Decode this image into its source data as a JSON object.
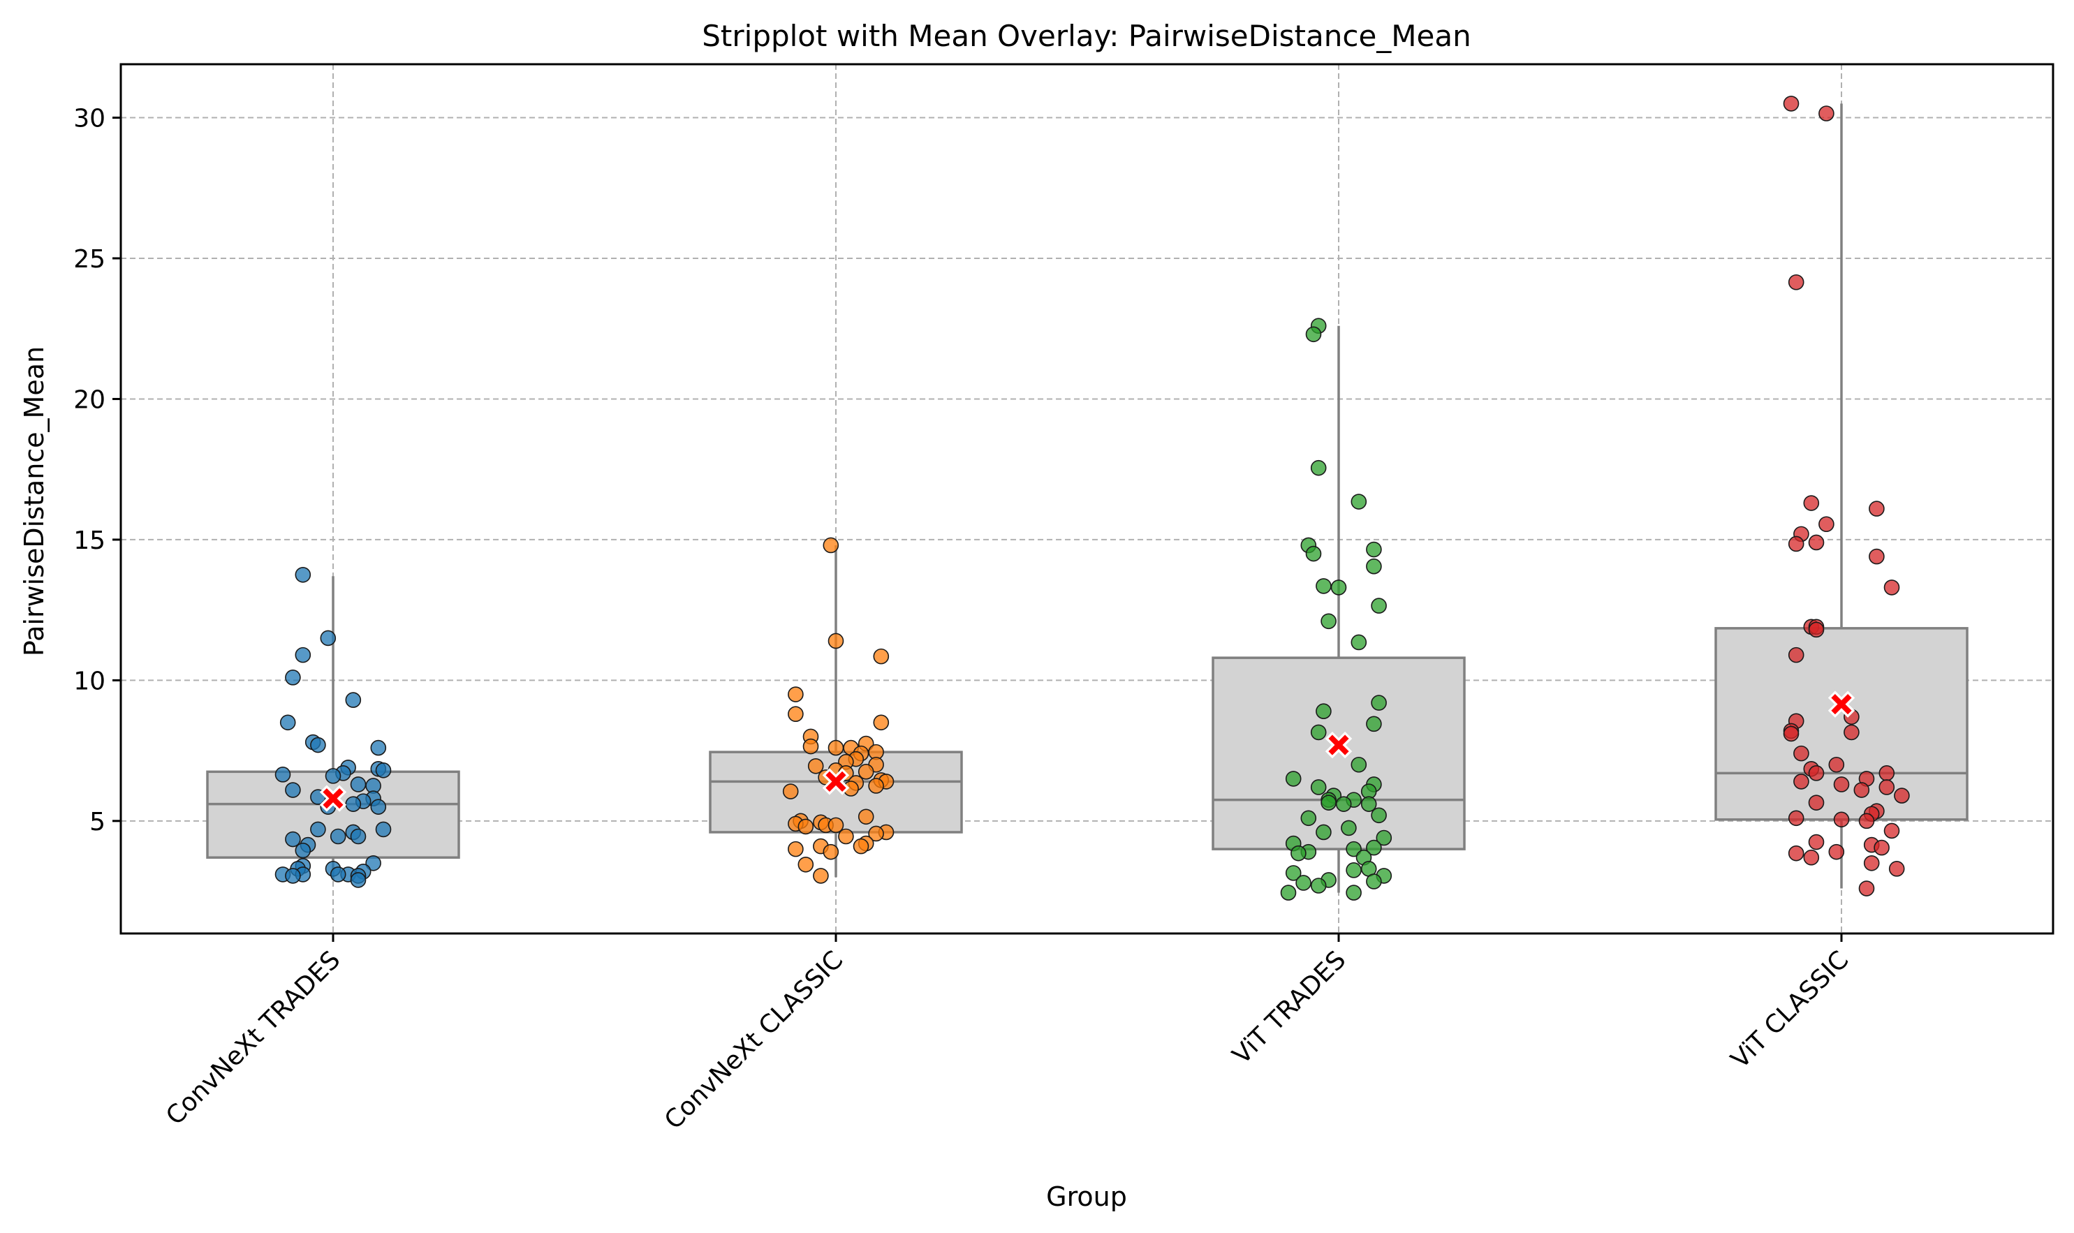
{
  "chart_data": {
    "type": "stripplot with boxplot",
    "title": "Stripplot with Mean Overlay: PairwiseDistance_Mean",
    "xlabel": "Group",
    "ylabel": "PairwiseDistance_Mean",
    "ylim": [
      1.0,
      31.9
    ],
    "yticks": [
      5,
      10,
      15,
      20,
      25,
      30
    ],
    "grid": true,
    "categories": [
      "ConvNeXt TRADES",
      "ConvNeXt CLASSIC",
      "ViT TRADES",
      "ViT CLASSIC"
    ],
    "colors": [
      "#1f77b4",
      "#ff7f0e",
      "#2ca02c",
      "#d62728"
    ],
    "box_color": "#d3d3d3",
    "mean_marker_color": "#ff0000",
    "boxes": [
      {
        "q1": 3.7,
        "median": 5.6,
        "q3": 6.75,
        "whisker_low": 2.9,
        "whisker_high": 13.7,
        "mean": 5.8
      },
      {
        "q1": 4.6,
        "median": 6.4,
        "q3": 7.45,
        "whisker_low": 3.0,
        "whisker_high": 14.8,
        "mean": 6.4
      },
      {
        "q1": 4.0,
        "median": 5.75,
        "q3": 10.8,
        "whisker_low": 2.45,
        "whisker_high": 22.6,
        "mean": 7.7
      },
      {
        "q1": 5.05,
        "median": 6.7,
        "q3": 11.85,
        "whisker_low": 2.6,
        "whisker_high": 30.5,
        "mean": 9.15
      }
    ],
    "points": [
      [
        [
          -0.06,
          13.75
        ],
        [
          -0.01,
          11.5
        ],
        [
          -0.06,
          10.9
        ],
        [
          -0.08,
          10.1
        ],
        [
          0.04,
          9.3
        ],
        [
          -0.09,
          8.5
        ],
        [
          -0.04,
          7.8
        ],
        [
          -0.03,
          7.7
        ],
        [
          0.09,
          7.6
        ],
        [
          0.09,
          6.85
        ],
        [
          0.1,
          6.8
        ],
        [
          0.03,
          6.9
        ],
        [
          0.02,
          6.7
        ],
        [
          -0.1,
          6.65
        ],
        [
          0.0,
          6.6
        ],
        [
          0.05,
          6.3
        ],
        [
          0.08,
          6.25
        ],
        [
          -0.08,
          6.1
        ],
        [
          -0.03,
          5.85
        ],
        [
          0.08,
          5.8
        ],
        [
          0.06,
          5.7
        ],
        [
          0.04,
          5.6
        ],
        [
          0.09,
          5.5
        ],
        [
          -0.01,
          5.5
        ],
        [
          0.1,
          4.7
        ],
        [
          -0.03,
          4.7
        ],
        [
          0.04,
          4.6
        ],
        [
          0.05,
          4.45
        ],
        [
          0.01,
          4.45
        ],
        [
          -0.08,
          4.35
        ],
        [
          -0.05,
          4.15
        ],
        [
          -0.06,
          3.95
        ],
        [
          0.08,
          3.5
        ],
        [
          -0.06,
          3.4
        ],
        [
          -0.07,
          3.3
        ],
        [
          0.0,
          3.3
        ],
        [
          0.06,
          3.2
        ],
        [
          -0.1,
          3.1
        ],
        [
          -0.06,
          3.1
        ],
        [
          -0.08,
          3.05
        ],
        [
          0.03,
          3.1
        ],
        [
          0.01,
          3.1
        ],
        [
          0.05,
          3.05
        ],
        [
          0.05,
          2.9
        ]
      ],
      [
        [
          -0.01,
          14.8
        ],
        [
          -0.0,
          11.4
        ],
        [
          0.09,
          10.85
        ],
        [
          -0.08,
          9.5
        ],
        [
          -0.08,
          8.8
        ],
        [
          0.09,
          8.5
        ],
        [
          -0.05,
          8.0
        ],
        [
          0.06,
          7.75
        ],
        [
          -0.05,
          7.65
        ],
        [
          0.03,
          7.6
        ],
        [
          -0.0,
          7.6
        ],
        [
          0.08,
          7.45
        ],
        [
          0.05,
          7.4
        ],
        [
          0.04,
          7.2
        ],
        [
          0.02,
          7.1
        ],
        [
          0.08,
          7.0
        ],
        [
          -0.04,
          6.95
        ],
        [
          0.0,
          6.8
        ],
        [
          0.06,
          6.75
        ],
        [
          0.02,
          6.7
        ],
        [
          -0.02,
          6.55
        ],
        [
          0.09,
          6.45
        ],
        [
          0.1,
          6.4
        ],
        [
          0.04,
          6.35
        ],
        [
          0.08,
          6.25
        ],
        [
          0.03,
          6.15
        ],
        [
          -0.09,
          6.05
        ],
        [
          0.06,
          5.15
        ],
        [
          -0.07,
          5.0
        ],
        [
          -0.03,
          4.95
        ],
        [
          -0.08,
          4.9
        ],
        [
          -0.02,
          4.85
        ],
        [
          0.0,
          4.85
        ],
        [
          -0.06,
          4.8
        ],
        [
          0.1,
          4.6
        ],
        [
          0.08,
          4.55
        ],
        [
          0.02,
          4.45
        ],
        [
          0.06,
          4.2
        ],
        [
          0.05,
          4.1
        ],
        [
          -0.03,
          4.1
        ],
        [
          -0.08,
          4.0
        ],
        [
          -0.01,
          3.9
        ],
        [
          -0.06,
          3.45
        ],
        [
          -0.03,
          3.05
        ]
      ],
      [
        [
          -0.04,
          22.6
        ],
        [
          -0.05,
          22.3
        ],
        [
          -0.04,
          17.55
        ],
        [
          0.04,
          16.35
        ],
        [
          -0.06,
          14.8
        ],
        [
          0.07,
          14.65
        ],
        [
          -0.05,
          14.5
        ],
        [
          0.07,
          14.05
        ],
        [
          -0.03,
          13.35
        ],
        [
          0.0,
          13.3
        ],
        [
          0.08,
          12.65
        ],
        [
          -0.02,
          12.1
        ],
        [
          0.04,
          11.35
        ],
        [
          0.08,
          9.2
        ],
        [
          -0.03,
          8.9
        ],
        [
          0.07,
          8.45
        ],
        [
          -0.04,
          8.15
        ],
        [
          0.04,
          7.0
        ],
        [
          -0.09,
          6.5
        ],
        [
          0.07,
          6.3
        ],
        [
          -0.04,
          6.2
        ],
        [
          0.06,
          6.05
        ],
        [
          -0.01,
          5.9
        ],
        [
          -0.02,
          5.75
        ],
        [
          0.03,
          5.75
        ],
        [
          -0.02,
          5.65
        ],
        [
          0.01,
          5.6
        ],
        [
          0.06,
          5.6
        ],
        [
          0.08,
          5.2
        ],
        [
          -0.06,
          5.1
        ],
        [
          0.02,
          4.75
        ],
        [
          -0.03,
          4.6
        ],
        [
          0.09,
          4.4
        ],
        [
          -0.09,
          4.2
        ],
        [
          0.07,
          4.05
        ],
        [
          0.03,
          4.0
        ],
        [
          -0.06,
          3.9
        ],
        [
          -0.08,
          3.85
        ],
        [
          0.05,
          3.7
        ],
        [
          0.06,
          3.3
        ],
        [
          0.03,
          3.25
        ],
        [
          -0.09,
          3.15
        ],
        [
          0.09,
          3.05
        ],
        [
          -0.02,
          2.9
        ],
        [
          0.07,
          2.85
        ],
        [
          -0.07,
          2.8
        ],
        [
          -0.04,
          2.7
        ],
        [
          -0.1,
          2.45
        ],
        [
          0.03,
          2.45
        ]
      ],
      [
        [
          -0.1,
          30.5
        ],
        [
          -0.03,
          30.15
        ],
        [
          -0.09,
          24.15
        ],
        [
          -0.06,
          16.3
        ],
        [
          0.07,
          16.1
        ],
        [
          -0.03,
          15.55
        ],
        [
          -0.08,
          15.2
        ],
        [
          -0.05,
          14.9
        ],
        [
          -0.09,
          14.85
        ],
        [
          0.07,
          14.4
        ],
        [
          0.1,
          13.3
        ],
        [
          -0.06,
          11.9
        ],
        [
          -0.05,
          11.9
        ],
        [
          -0.05,
          11.8
        ],
        [
          -0.09,
          10.9
        ],
        [
          0.02,
          8.7
        ],
        [
          -0.09,
          8.55
        ],
        [
          -0.1,
          8.2
        ],
        [
          0.02,
          8.15
        ],
        [
          -0.1,
          8.1
        ],
        [
          -0.08,
          7.4
        ],
        [
          -0.01,
          7.0
        ],
        [
          -0.06,
          6.85
        ],
        [
          -0.05,
          6.7
        ],
        [
          0.09,
          6.7
        ],
        [
          0.05,
          6.5
        ],
        [
          -0.08,
          6.4
        ],
        [
          0.0,
          6.3
        ],
        [
          0.09,
          6.2
        ],
        [
          0.04,
          6.1
        ],
        [
          0.12,
          5.9
        ],
        [
          -0.05,
          5.65
        ],
        [
          0.07,
          5.35
        ],
        [
          0.06,
          5.25
        ],
        [
          -0.09,
          5.1
        ],
        [
          0.0,
          5.05
        ],
        [
          0.05,
          5.0
        ],
        [
          0.1,
          4.65
        ],
        [
          -0.05,
          4.25
        ],
        [
          0.06,
          4.15
        ],
        [
          0.08,
          4.05
        ],
        [
          -0.01,
          3.9
        ],
        [
          -0.09,
          3.85
        ],
        [
          -0.06,
          3.7
        ],
        [
          0.06,
          3.5
        ],
        [
          0.11,
          3.3
        ],
        [
          0.05,
          2.6
        ]
      ]
    ]
  }
}
